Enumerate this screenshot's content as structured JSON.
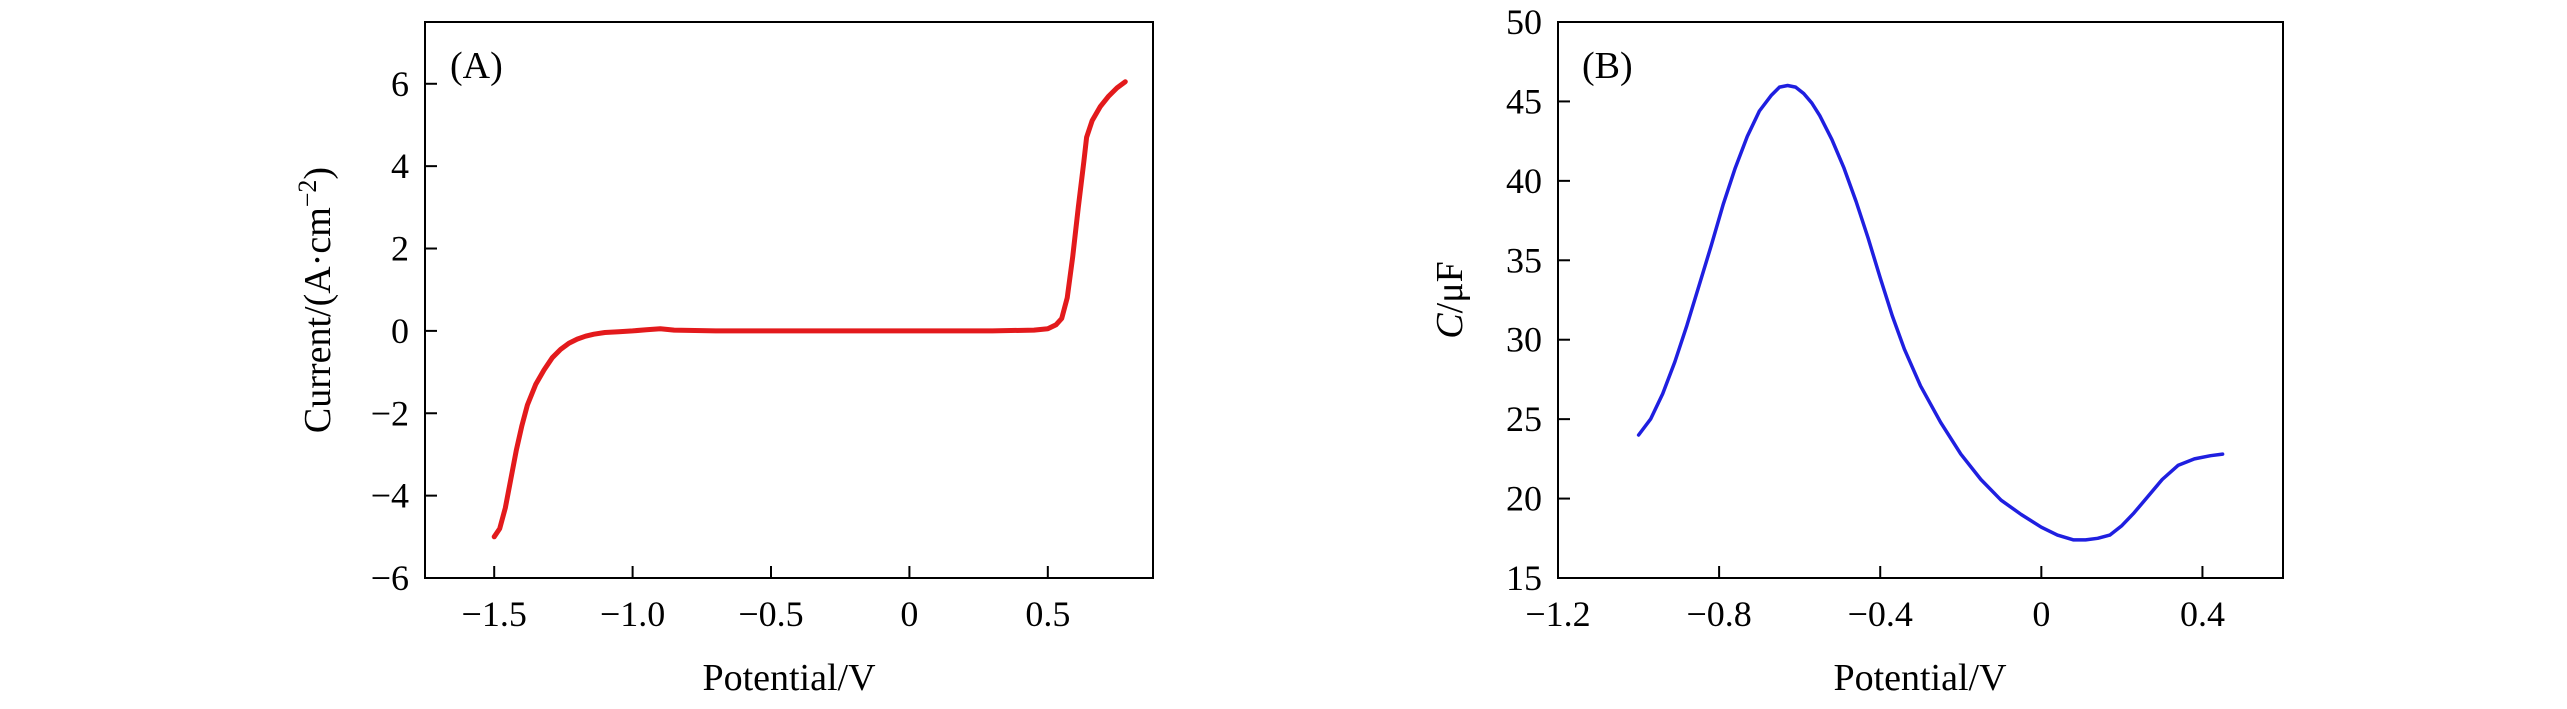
{
  "chart_data": [
    {
      "type": "line",
      "panel_label": "(A)",
      "xlabel": "Potential/V",
      "ylabel": "Current/(A·cm",
      "ylabel_exp": "−2",
      "ylabel_end": ")",
      "xlim": [
        -1.75,
        0.88
      ],
      "ylim": [
        -6,
        7.5
      ],
      "xticks": [
        -1.5,
        -1.0,
        -0.5,
        0,
        0.5
      ],
      "xtick_labels": [
        "−1.5",
        "−1.0",
        "−0.5",
        "0",
        "0.5"
      ],
      "yticks": [
        -6,
        -4,
        -2,
        0,
        2,
        4,
        6
      ],
      "ytick_labels": [
        "−6",
        "−4",
        "−2",
        "0",
        "2",
        "4",
        "6"
      ],
      "series": [
        {
          "color": "#e31a1c",
          "x": [
            -1.5,
            -1.48,
            -1.46,
            -1.44,
            -1.42,
            -1.4,
            -1.38,
            -1.35,
            -1.32,
            -1.29,
            -1.26,
            -1.23,
            -1.2,
            -1.17,
            -1.14,
            -1.1,
            -1.05,
            -1.0,
            -0.95,
            -0.9,
            -0.85,
            -0.7,
            -0.5,
            -0.3,
            -0.1,
            0.1,
            0.3,
            0.45,
            0.5,
            0.53,
            0.55,
            0.57,
            0.59,
            0.61,
            0.63,
            0.64,
            0.66,
            0.69,
            0.72,
            0.75,
            0.78
          ],
          "y": [
            -5.0,
            -4.8,
            -4.3,
            -3.6,
            -2.9,
            -2.3,
            -1.8,
            -1.3,
            -0.95,
            -0.65,
            -0.45,
            -0.3,
            -0.2,
            -0.13,
            -0.08,
            -0.04,
            -0.02,
            0.0,
            0.03,
            0.05,
            0.02,
            0.0,
            0.0,
            0.0,
            0.0,
            0.0,
            0.0,
            0.02,
            0.05,
            0.15,
            0.3,
            0.8,
            1.8,
            3.0,
            4.1,
            4.7,
            5.1,
            5.45,
            5.7,
            5.9,
            6.05
          ]
        }
      ]
    },
    {
      "type": "line",
      "panel_label": "(B)",
      "xlabel": "Potential/V",
      "ylabel_italic": "C",
      "ylabel_rest": "/μF",
      "xlim": [
        -1.2,
        0.6
      ],
      "ylim": [
        15,
        50
      ],
      "xticks": [
        -1.2,
        -0.8,
        -0.4,
        0,
        0.4
      ],
      "xtick_labels": [
        "−1.2",
        "−0.8",
        "−0.4",
        "0",
        "0.4"
      ],
      "yticks": [
        15,
        20,
        25,
        30,
        35,
        40,
        45,
        50
      ],
      "ytick_labels": [
        "15",
        "20",
        "25",
        "30",
        "35",
        "40",
        "45",
        "50"
      ],
      "series": [
        {
          "color": "#1f1fe0",
          "x": [
            -1.0,
            -0.97,
            -0.94,
            -0.91,
            -0.88,
            -0.85,
            -0.82,
            -0.79,
            -0.76,
            -0.73,
            -0.7,
            -0.67,
            -0.65,
            -0.63,
            -0.61,
            -0.59,
            -0.57,
            -0.55,
            -0.52,
            -0.49,
            -0.46,
            -0.43,
            -0.4,
            -0.37,
            -0.34,
            -0.3,
            -0.25,
            -0.2,
            -0.15,
            -0.1,
            -0.05,
            0.0,
            0.04,
            0.08,
            0.11,
            0.14,
            0.17,
            0.2,
            0.23,
            0.26,
            0.3,
            0.34,
            0.38,
            0.42,
            0.45
          ],
          "y": [
            24.0,
            25.0,
            26.6,
            28.6,
            30.9,
            33.4,
            35.9,
            38.5,
            40.8,
            42.8,
            44.4,
            45.4,
            45.9,
            46.0,
            45.9,
            45.5,
            44.9,
            44.1,
            42.6,
            40.8,
            38.7,
            36.4,
            33.9,
            31.5,
            29.4,
            27.1,
            24.8,
            22.8,
            21.2,
            19.9,
            19.0,
            18.2,
            17.7,
            17.4,
            17.4,
            17.5,
            17.7,
            18.3,
            19.1,
            20.0,
            21.2,
            22.1,
            22.5,
            22.7,
            22.8
          ]
        }
      ]
    }
  ]
}
